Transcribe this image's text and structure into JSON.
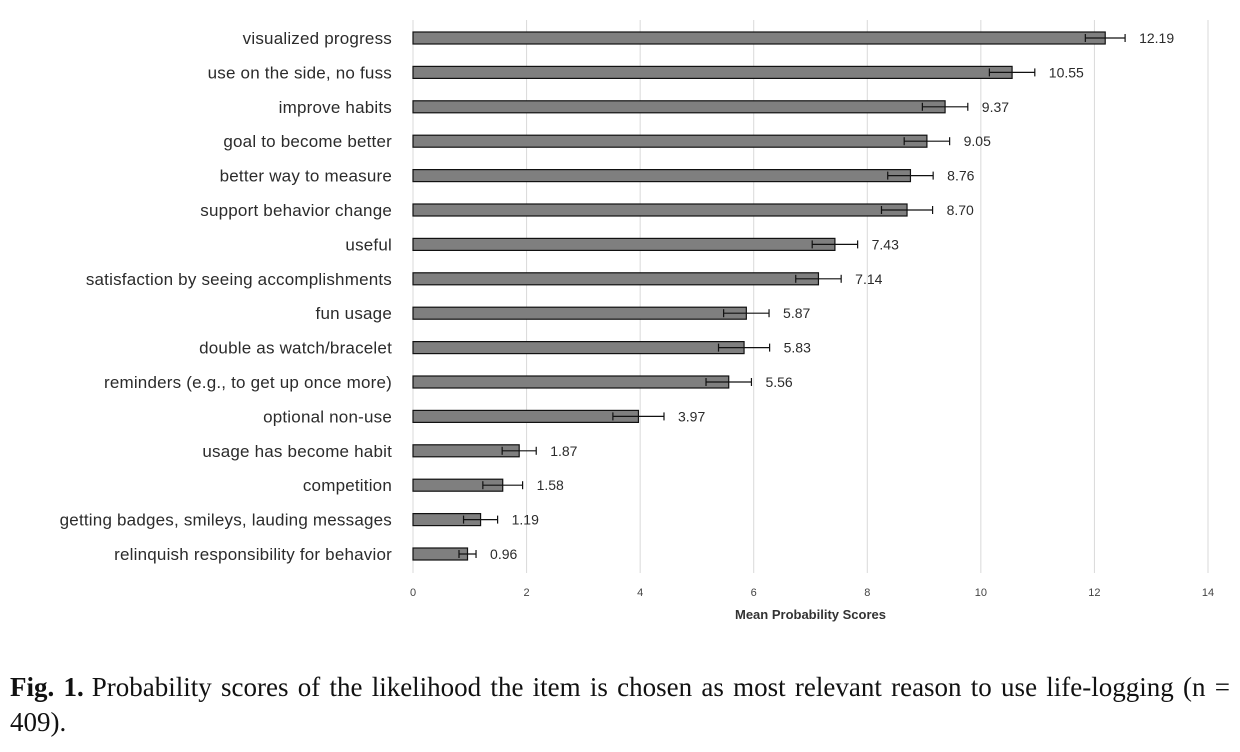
{
  "chart_data": {
    "type": "bar",
    "orientation": "horizontal",
    "categories": [
      "visualized progress",
      "use on the side, no fuss",
      "improve habits",
      "goal to become better",
      "better way to measure",
      "support behavior change",
      "useful",
      "satisfaction by seeing accomplishments",
      "fun usage",
      "double as watch/bracelet",
      "reminders (e.g., to get up once more)",
      "optional non-use",
      "usage has become habit",
      "competition",
      "getting badges, smileys, lauding messages",
      "relinquish responsibility for behavior"
    ],
    "values": [
      12.19,
      10.55,
      9.37,
      9.05,
      8.76,
      8.7,
      7.43,
      7.14,
      5.87,
      5.83,
      5.56,
      3.97,
      1.87,
      1.58,
      1.19,
      0.96
    ],
    "value_labels": [
      "12.19",
      "10.55",
      "9.37",
      "9.05",
      "8.76",
      "8.70",
      "7.43",
      "7.14",
      "5.87",
      "5.83",
      "5.56",
      "3.97",
      "1.87",
      "1.58",
      "1.19",
      "0.96"
    ],
    "error": [
      0.35,
      0.4,
      0.4,
      0.4,
      0.4,
      0.45,
      0.4,
      0.4,
      0.4,
      0.45,
      0.4,
      0.45,
      0.3,
      0.35,
      0.3,
      0.15
    ],
    "xlabel": "Mean Probability Scores",
    "ylabel": "",
    "xlim": [
      0,
      14
    ],
    "xticks": [
      "0",
      "2",
      "4",
      "6",
      "8",
      "10",
      "12",
      "14"
    ],
    "grid": "vertical",
    "bar_color": "#7f7f7f",
    "bar_edge_color": "#111111",
    "grid_color": "#d9d9d9"
  },
  "caption": {
    "figure_number": "Fig. 1.",
    "text": "Probability scores of the likelihood the item is chosen as most relevant reason to use life-logging (n = 409)."
  }
}
